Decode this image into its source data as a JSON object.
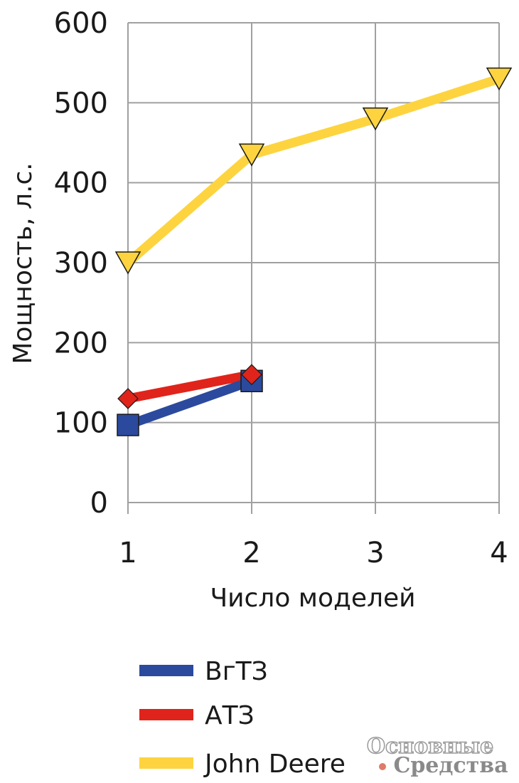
{
  "chart_data": {
    "type": "line",
    "xlabel": "Число моделей",
    "ylabel": "Мощность, л.с.",
    "x": [
      1,
      2,
      3,
      4
    ],
    "xticks": [
      "1",
      "2",
      "3",
      "4"
    ],
    "yticks": [
      "0",
      "100",
      "200",
      "300",
      "400",
      "500",
      "600"
    ],
    "ylim": [
      0,
      600
    ],
    "grid": true,
    "legend_position": "bottom",
    "series": [
      {
        "name": "ВгТЗ",
        "color": "#2b4a9e",
        "marker": "square",
        "x": [
          1,
          2
        ],
        "values": [
          97,
          152
        ]
      },
      {
        "name": "АТЗ",
        "color": "#e0241b",
        "marker": "diamond",
        "x": [
          1,
          2
        ],
        "values": [
          130,
          160
        ]
      },
      {
        "name": "John Deere",
        "color": "#fdd43f",
        "marker": "triangle-down",
        "x": [
          1,
          2,
          3,
          4
        ],
        "values": [
          300,
          435,
          480,
          530
        ]
      }
    ]
  },
  "watermark": {
    "line1": "Основные",
    "line2": "Средства",
    "dot_color": "#e07a6a"
  }
}
